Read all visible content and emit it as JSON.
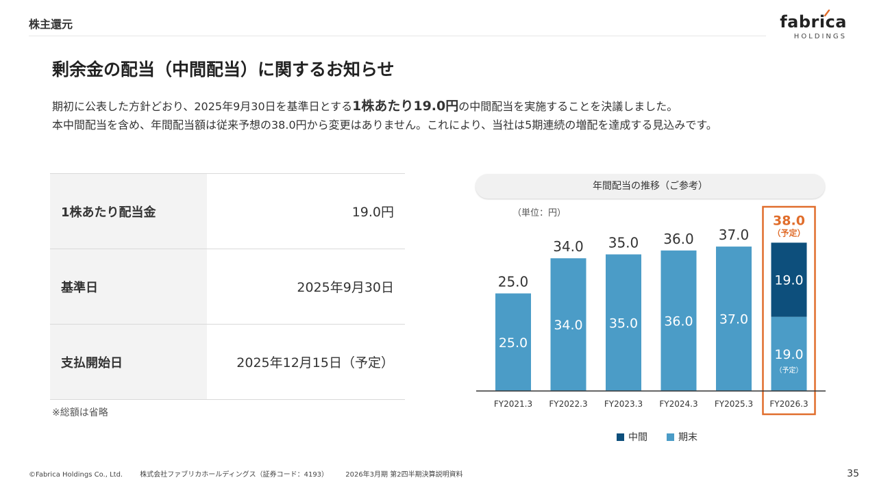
{
  "header": {
    "section": "株主還元",
    "logo_text": "fabrica",
    "logo_sub": "HOLDINGS"
  },
  "title": "剰余金の配当（中間配当）に関するお知らせ",
  "intro": {
    "line1_a": "期初に公表した方針どおり、2025年9月30日を基準日とする",
    "line1_b": "1株あたり19.0円",
    "line1_c": "の中間配当を実施することを決議しました。",
    "line2": "本中間配当を含め、年間配当額は従来予想の38.0円から変更はありません。これにより、当社は5期連続の増配を達成する見込みです。"
  },
  "table": {
    "rows": [
      {
        "label": "1株あたり配当金",
        "value": "19.0円"
      },
      {
        "label": "基準日",
        "value": "2025年9月30日"
      },
      {
        "label": "支払開始日",
        "value": "2025年12月15日（予定）"
      }
    ],
    "note": "※総額は省略"
  },
  "chart_header": "年間配当の推移（ご参考）",
  "colors": {
    "interim": "#0d4f7c",
    "year_end": "#4b9cc7",
    "highlight": "#e06d2b"
  },
  "chart_data": {
    "type": "bar",
    "stacked": true,
    "unit_label": "（単位：円）",
    "categories": [
      "FY2021.3",
      "FY2022.3",
      "FY2023.3",
      "FY2024.3",
      "FY2025.3",
      "FY2026.3"
    ],
    "series": [
      {
        "name": "中間",
        "values": [
          0,
          0,
          0,
          0,
          0,
          19.0
        ]
      },
      {
        "name": "期末",
        "values": [
          25.0,
          34.0,
          35.0,
          36.0,
          37.0,
          19.0
        ]
      }
    ],
    "totals": [
      "25.0",
      "34.0",
      "35.0",
      "36.0",
      "37.0",
      "38.0"
    ],
    "segment_labels": {
      "year_end": [
        "25.0",
        "34.0",
        "35.0",
        "36.0",
        "37.0",
        "19.0"
      ],
      "interim": [
        "",
        "",
        "",
        "",
        "",
        "19.0"
      ]
    },
    "forecast_note": "（予定）",
    "highlight_category": "FY2026.3",
    "ylim": [
      0,
      42
    ]
  },
  "legend": {
    "interim": "中間",
    "year_end": "期末"
  },
  "footer": {
    "copyright": "©Fabrica Holdings Co., Ltd.",
    "company": "株式会社ファブリカホールディングス（証券コード：4193）",
    "doc": "2026年3月期 第2四半期決算説明資料",
    "page": "35"
  }
}
